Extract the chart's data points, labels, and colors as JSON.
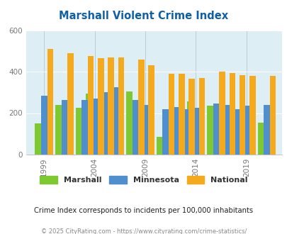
{
  "title": "Marshall Violent Crime Index",
  "subtitle": "Crime Index corresponds to incidents per 100,000 inhabitants",
  "footer": "© 2025 CityRating.com - https://www.cityrating.com/crime-statistics/",
  "years": [
    1999,
    2001,
    2003,
    2004,
    2005,
    2006,
    2008,
    2009,
    2011,
    2012,
    2013,
    2014,
    2016,
    2017,
    2018,
    2019,
    2021
  ],
  "marshall": [
    150,
    240,
    225,
    295,
    150,
    165,
    305,
    220,
    85,
    180,
    165,
    255,
    235,
    105,
    185,
    155,
    155
  ],
  "minnesota": [
    285,
    265,
    265,
    270,
    300,
    325,
    265,
    240,
    220,
    230,
    220,
    225,
    245,
    240,
    220,
    235,
    238
  ],
  "national": [
    510,
    490,
    475,
    465,
    470,
    470,
    460,
    430,
    390,
    390,
    365,
    370,
    400,
    395,
    385,
    380,
    380
  ],
  "bar_colors": {
    "marshall": "#7ec832",
    "minnesota": "#4f8fce",
    "national": "#f5aa1e"
  },
  "bg_color": "#ddeef4",
  "title_color": "#1060a8",
  "ylim": [
    0,
    600
  ],
  "yticks": [
    0,
    200,
    400,
    600
  ],
  "xtick_positions": [
    1999,
    2004,
    2009,
    2014,
    2019
  ],
  "xlim": [
    1997.2,
    2022.5
  ],
  "legend_labels": [
    "Marshall",
    "Minnesota",
    "National"
  ],
  "bar_width": 0.6,
  "subtitle_color": "#222222",
  "footer_color": "#888888",
  "legend_text_color": "#333333"
}
